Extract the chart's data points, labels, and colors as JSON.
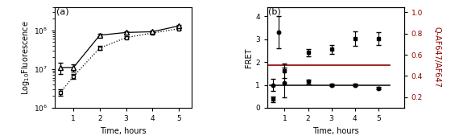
{
  "panel_a": {
    "time_square": [
      0.5,
      1.0,
      2.0,
      3.0,
      4.0,
      5.0
    ],
    "fluor_square": [
      2500000.0,
      6500000.0,
      35000000.0,
      65000000.0,
      85000000.0,
      110000000.0
    ],
    "err_square": [
      500000.0,
      1000000.0,
      4000000.0,
      5000000.0,
      4000000.0,
      5000000.0
    ],
    "time_tri": [
      0.5,
      1.0,
      2.0,
      3.0,
      4.0,
      5.0
    ],
    "fluor_tri": [
      11000000.0,
      11000000.0,
      75000000.0,
      88000000.0,
      92000000.0,
      130000000.0
    ],
    "err_tri": [
      3500000.0,
      2500000.0,
      5000000.0,
      7000000.0,
      5000000.0,
      7000000.0
    ],
    "xlabel": "Time, hours",
    "ylabel": "Log$_{10}$Fluorescence",
    "ylim_log": [
      1000000.0,
      400000000.0
    ],
    "xlim": [
      0.3,
      5.5
    ],
    "xticks": [
      1,
      2,
      3,
      4,
      5
    ],
    "label": "(a)"
  },
  "panel_b": {
    "time_circle": [
      0.5,
      0.75,
      1.0,
      2.0,
      3.0,
      4.0,
      5.0
    ],
    "fret_circle": [
      1.0,
      3.3,
      1.1,
      1.15,
      1.0,
      1.0,
      0.85
    ],
    "err_circle": [
      0.25,
      0.7,
      0.65,
      0.08,
      0.06,
      0.06,
      0.06
    ],
    "time_square": [
      0.5,
      1.0,
      2.0,
      3.0,
      4.0,
      5.0
    ],
    "ratio_square": [
      0.18,
      0.45,
      0.62,
      0.65,
      0.75,
      0.75
    ],
    "err_square": [
      0.025,
      0.07,
      0.035,
      0.045,
      0.07,
      0.06
    ],
    "xlabel": "Time, hours",
    "ylabel_left": "FRET",
    "ylabel_right": "Q-AF647/AF647",
    "ylim_left": [
      0,
      4.4
    ],
    "ylim_right": [
      0.1,
      1.05
    ],
    "xlim": [
      0.25,
      6.1
    ],
    "xticks": [
      1,
      2,
      3,
      4,
      5
    ],
    "yticks_left": [
      0,
      1,
      2,
      3,
      4
    ],
    "yticks_right": [
      0.2,
      0.4,
      0.6,
      0.8,
      1.0
    ],
    "label": "(b)"
  },
  "colors": {
    "black": "#000000",
    "dark_red": "#8B0000"
  }
}
